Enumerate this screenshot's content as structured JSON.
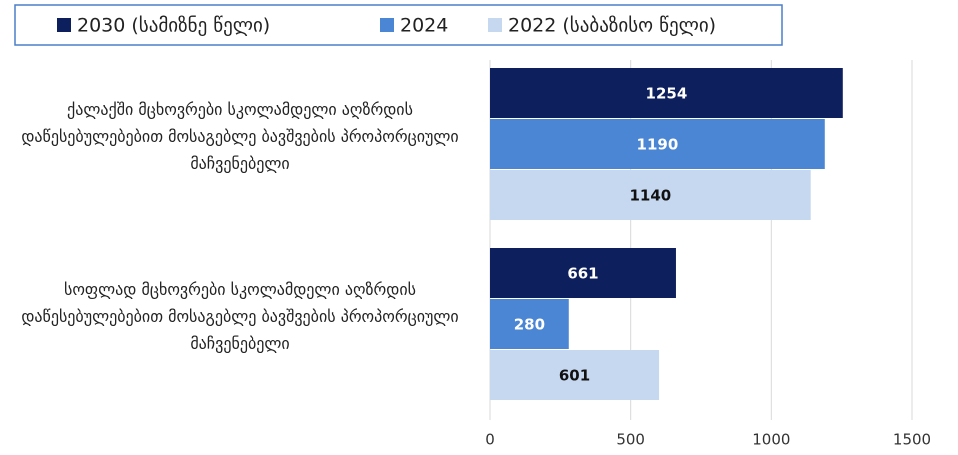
{
  "chart_data": {
    "type": "hbar",
    "categories": [
      "ქალაქში მცხოვრები სკოლამდელი აღზრდის დაწესებულებებით მოსაგებლე ბავშვების პროპორციული მაჩვენებელი",
      "სოფლად მცხოვრები სკოლამდელი აღზრდის დაწესებულებებით მოსაგებლე ბავშვების პროპორციული მაჩვენებელი"
    ],
    "series": [
      {
        "name": "2030 (სამიზნე წელი)",
        "color": "#0d1f5c",
        "values": [
          1254,
          661
        ]
      },
      {
        "name": "2024",
        "color": "#4a86d4",
        "values": [
          1190,
          280
        ]
      },
      {
        "name": "2022 (საბაზისო წელი)",
        "color": "#c6d8f0",
        "values": [
          1140,
          601
        ]
      }
    ],
    "xlim": [
      0,
      1500
    ],
    "xticks": [
      0,
      500,
      1000,
      1500
    ],
    "grid": true,
    "legend": "top"
  }
}
